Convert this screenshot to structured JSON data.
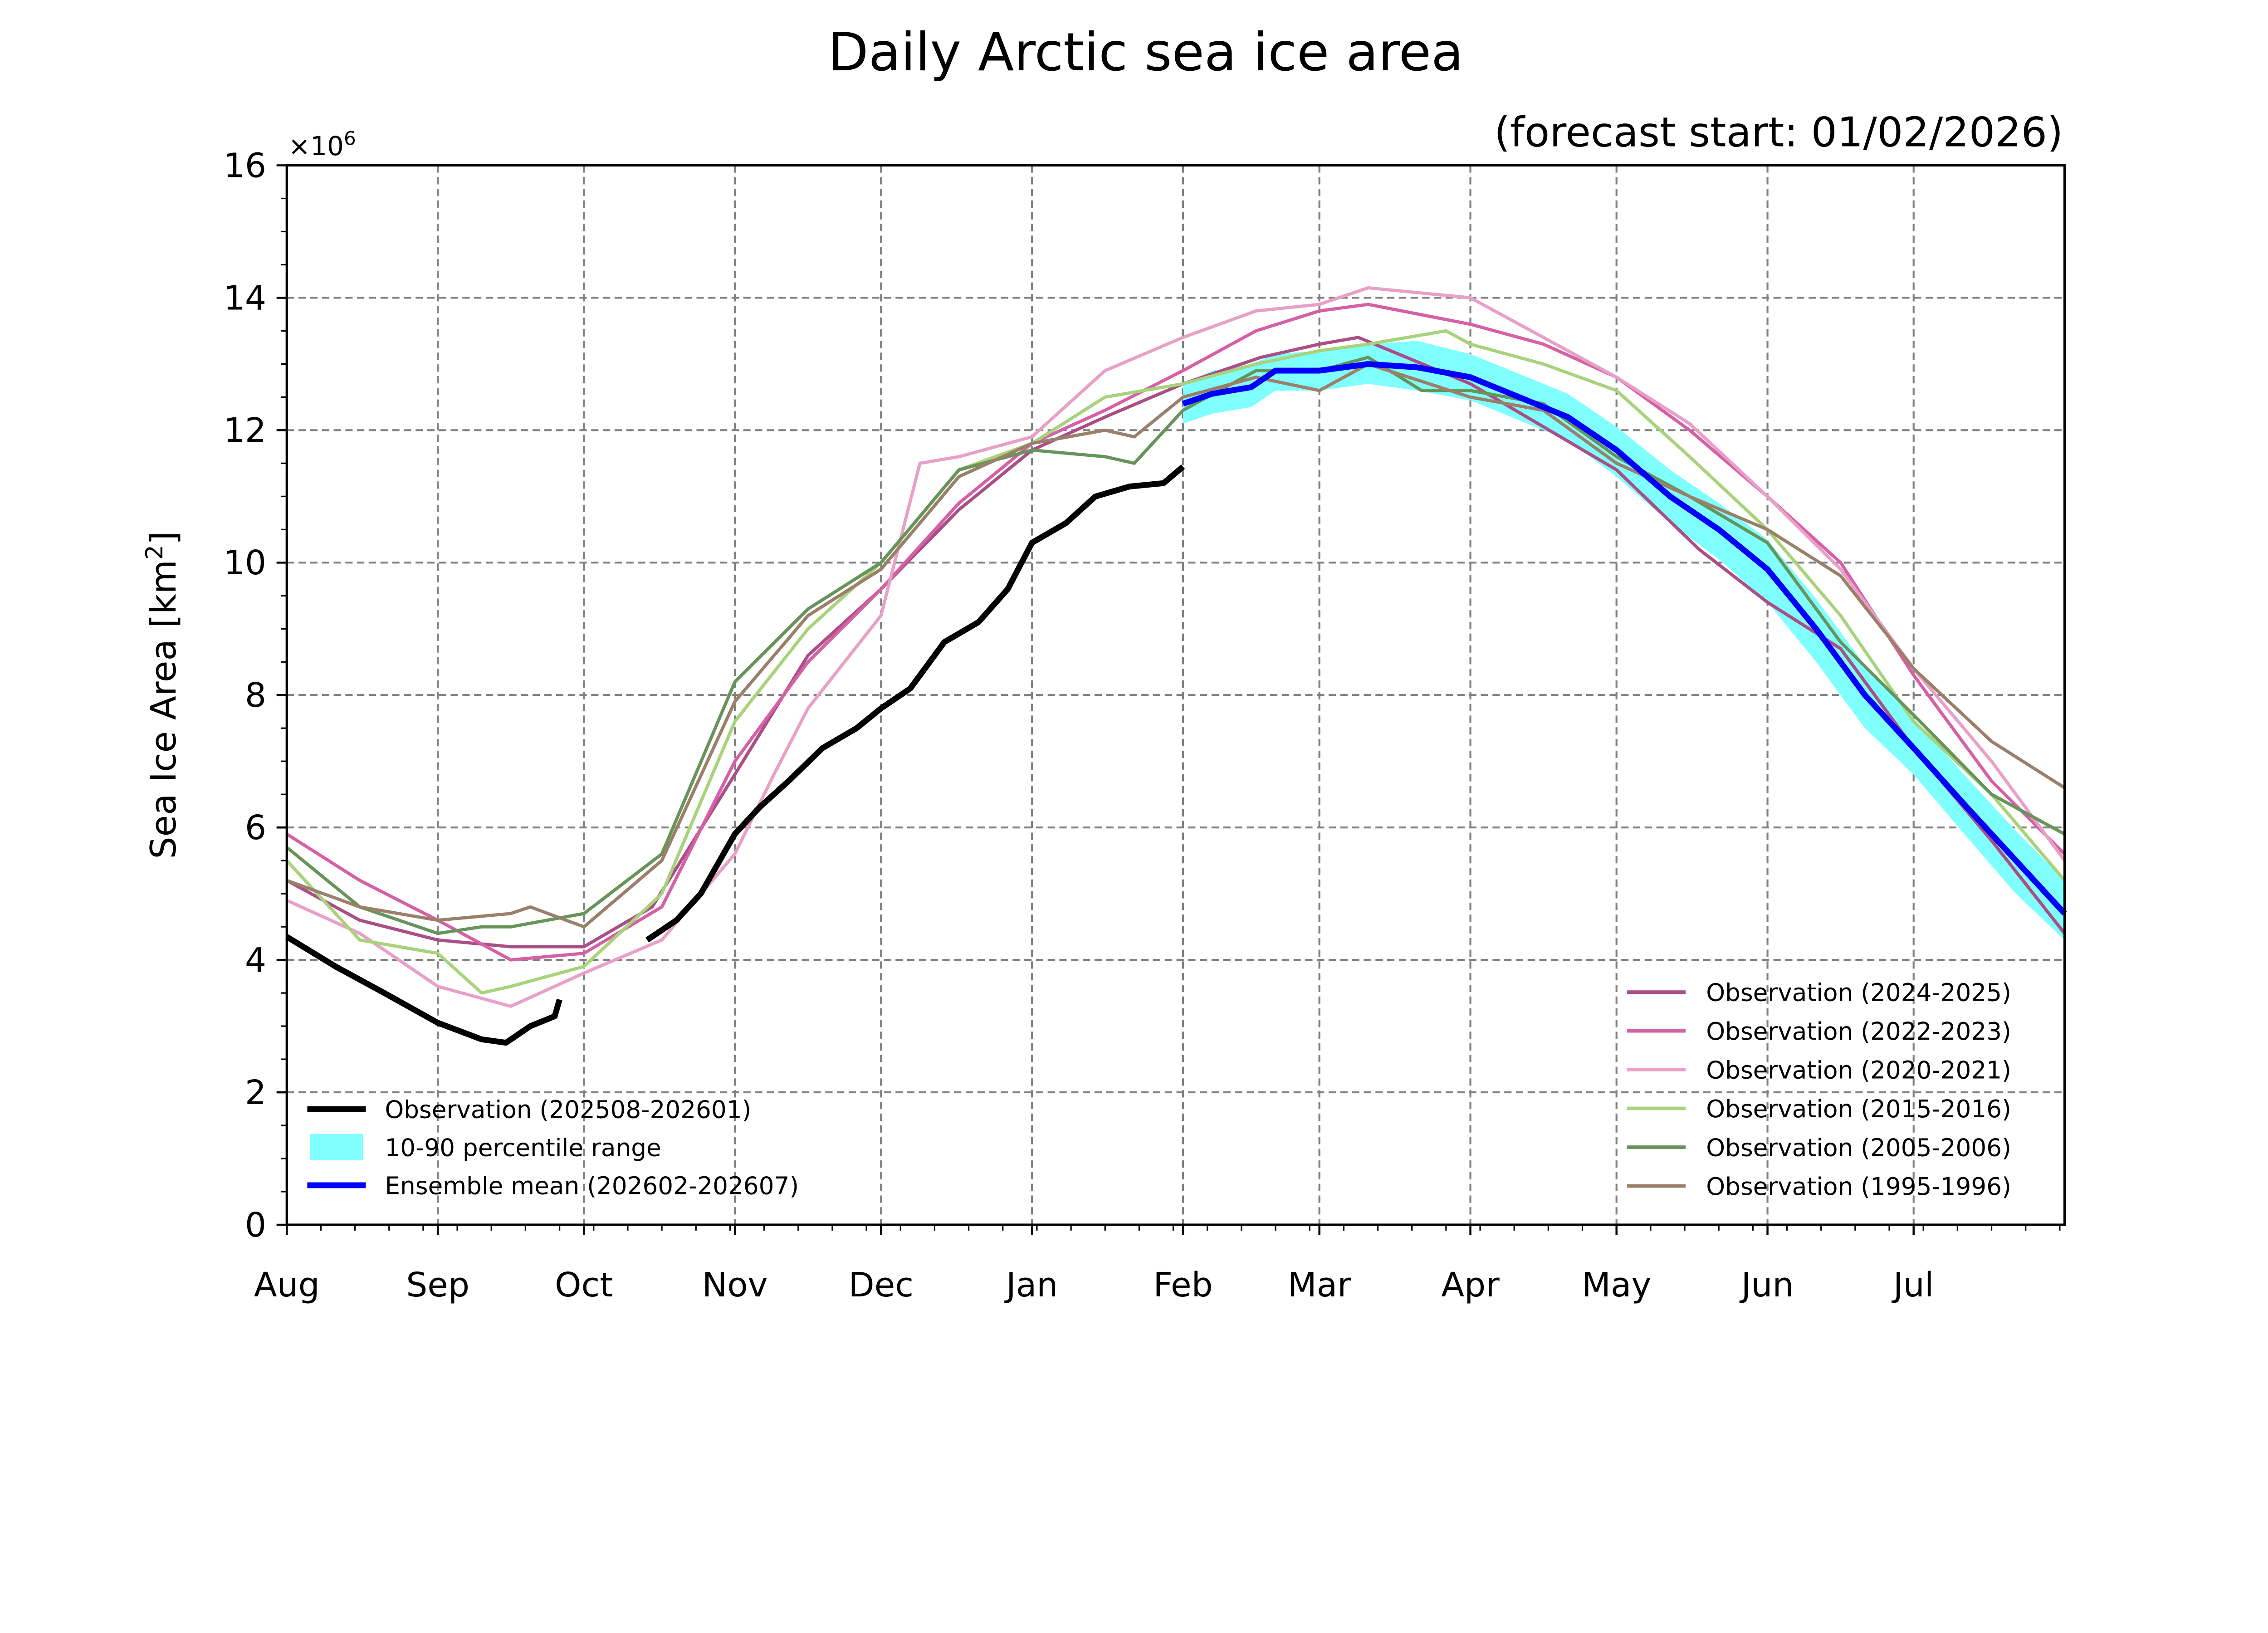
{
  "chart_data": {
    "type": "line",
    "title": "Daily Arctic sea ice area",
    "subtitle": "(forecast start: 01/02/2026)",
    "ylabel": "Sea Ice Area [km",
    "ylabel_sup": "2",
    "ylabel_end": "]",
    "y_multiplier": "×10",
    "y_multiplier_sup": "6",
    "ylim": [
      0,
      16
    ],
    "yticks": [
      "0",
      "2",
      "4",
      "6",
      "8",
      "10",
      "12",
      "14",
      "16"
    ],
    "xlim": [
      "2025-08-01",
      "2026-08-01"
    ],
    "xticks": [
      {
        "date": "2025-08-01",
        "label": "Aug"
      },
      {
        "date": "2025-09-01",
        "label": "Sep"
      },
      {
        "date": "2025-10-01",
        "label": "Oct"
      },
      {
        "date": "2025-11-01",
        "label": "Nov"
      },
      {
        "date": "2025-12-01",
        "label": "Dec"
      },
      {
        "date": "2026-01-01",
        "label": "Jan"
      },
      {
        "date": "2026-02-01",
        "label": "Feb"
      },
      {
        "date": "2026-03-01",
        "label": "Mar"
      },
      {
        "date": "2026-04-01",
        "label": "Apr"
      },
      {
        "date": "2026-05-01",
        "label": "May"
      },
      {
        "date": "2026-06-01",
        "label": "Jun"
      },
      {
        "date": "2026-07-01",
        "label": "Jul"
      }
    ],
    "grid": true,
    "legend_left_placement": "lower-left",
    "legend_right_placement": "lower-right",
    "band": {
      "name": "10-90 percentile range",
      "color": "#80ffff",
      "points": [
        [
          "2026-02-01",
          12.1,
          12.7
        ],
        [
          "2026-02-07",
          12.25,
          12.9
        ],
        [
          "2026-02-15",
          12.35,
          13.0
        ],
        [
          "2026-02-20",
          12.6,
          13.15
        ],
        [
          "2026-03-01",
          12.6,
          13.2
        ],
        [
          "2026-03-11",
          12.7,
          13.3
        ],
        [
          "2026-03-21",
          12.6,
          13.35
        ],
        [
          "2026-04-01",
          12.45,
          13.15
        ],
        [
          "2026-04-11",
          12.15,
          12.85
        ],
        [
          "2026-04-21",
          11.85,
          12.55
        ],
        [
          "2026-05-01",
          11.3,
          12.05
        ],
        [
          "2026-05-12",
          10.6,
          11.4
        ],
        [
          "2026-05-22",
          10.05,
          10.9
        ],
        [
          "2026-06-01",
          9.4,
          10.35
        ],
        [
          "2026-06-11",
          8.5,
          9.45
        ],
        [
          "2026-06-21",
          7.5,
          8.45
        ],
        [
          "2026-07-01",
          6.8,
          7.65
        ],
        [
          "2026-07-12",
          5.85,
          6.75
        ],
        [
          "2026-07-22",
          5.0,
          5.95
        ],
        [
          "2026-08-01",
          4.3,
          5.2
        ]
      ]
    },
    "series": [
      {
        "name": "Observation (2024-2025)",
        "color": "#a94f86",
        "width": 2.2,
        "points": [
          [
            "2025-08-01",
            5.2
          ],
          [
            "2025-08-16",
            4.6
          ],
          [
            "2025-09-01",
            4.3
          ],
          [
            "2025-09-16",
            4.2
          ],
          [
            "2025-10-01",
            4.2
          ],
          [
            "2025-10-15",
            4.8
          ],
          [
            "2025-11-01",
            6.8
          ],
          [
            "2025-11-16",
            8.6
          ],
          [
            "2025-12-01",
            9.6
          ],
          [
            "2025-12-17",
            10.8
          ],
          [
            "2026-01-01",
            11.7
          ],
          [
            "2026-01-16",
            12.2
          ],
          [
            "2026-02-01",
            12.7
          ],
          [
            "2026-02-17",
            13.1
          ],
          [
            "2026-03-01",
            13.3
          ],
          [
            "2026-03-09",
            13.4
          ],
          [
            "2026-04-01",
            12.7
          ],
          [
            "2026-05-01",
            11.4
          ],
          [
            "2026-05-18",
            10.2
          ],
          [
            "2026-06-01",
            9.4
          ],
          [
            "2026-06-16",
            8.7
          ],
          [
            "2026-07-01",
            7.2
          ],
          [
            "2026-07-17",
            5.8
          ],
          [
            "2026-08-01",
            4.4
          ]
        ]
      },
      {
        "name": "Observation (2022-2023)",
        "color": "#d660a6",
        "width": 2.2,
        "points": [
          [
            "2025-08-01",
            5.9
          ],
          [
            "2025-08-16",
            5.2
          ],
          [
            "2025-09-01",
            4.6
          ],
          [
            "2025-09-16",
            4.0
          ],
          [
            "2025-10-01",
            4.1
          ],
          [
            "2025-10-17",
            4.8
          ],
          [
            "2025-11-01",
            7.0
          ],
          [
            "2025-11-16",
            8.5
          ],
          [
            "2025-12-01",
            9.6
          ],
          [
            "2025-12-17",
            10.9
          ],
          [
            "2026-01-01",
            11.8
          ],
          [
            "2026-01-16",
            12.3
          ],
          [
            "2026-02-01",
            12.9
          ],
          [
            "2026-02-16",
            13.5
          ],
          [
            "2026-03-01",
            13.8
          ],
          [
            "2026-03-11",
            13.9
          ],
          [
            "2026-04-01",
            13.6
          ],
          [
            "2026-04-16",
            13.3
          ],
          [
            "2026-05-01",
            12.8
          ],
          [
            "2026-05-16",
            12.0
          ],
          [
            "2026-06-01",
            11.0
          ],
          [
            "2026-06-16",
            10.0
          ],
          [
            "2026-07-01",
            8.3
          ],
          [
            "2026-07-17",
            6.7
          ],
          [
            "2026-08-01",
            5.6
          ]
        ]
      },
      {
        "name": "Observation (2020-2021)",
        "color": "#e8a0c8",
        "width": 2.2,
        "points": [
          [
            "2025-08-01",
            4.9
          ],
          [
            "2025-08-16",
            4.4
          ],
          [
            "2025-09-01",
            3.6
          ],
          [
            "2025-09-16",
            3.3
          ],
          [
            "2025-10-01",
            3.8
          ],
          [
            "2025-10-17",
            4.3
          ],
          [
            "2025-11-01",
            5.6
          ],
          [
            "2025-11-09",
            6.8
          ],
          [
            "2025-11-16",
            7.8
          ],
          [
            "2025-12-01",
            9.2
          ],
          [
            "2025-12-09",
            11.5
          ],
          [
            "2025-12-17",
            11.6
          ],
          [
            "2026-01-01",
            11.9
          ],
          [
            "2026-01-16",
            12.9
          ],
          [
            "2026-02-01",
            13.4
          ],
          [
            "2026-02-16",
            13.8
          ],
          [
            "2026-03-01",
            13.9
          ],
          [
            "2026-03-11",
            14.15
          ],
          [
            "2026-04-01",
            14.0
          ],
          [
            "2026-04-16",
            13.4
          ],
          [
            "2026-05-01",
            12.8
          ],
          [
            "2026-05-16",
            12.1
          ],
          [
            "2026-06-01",
            11.0
          ],
          [
            "2026-06-16",
            9.9
          ],
          [
            "2026-07-01",
            8.4
          ],
          [
            "2026-07-17",
            7.0
          ],
          [
            "2026-08-01",
            5.5
          ]
        ]
      },
      {
        "name": "Observation (2015-2016)",
        "color": "#a8d27c",
        "width": 2.2,
        "points": [
          [
            "2025-08-01",
            5.5
          ],
          [
            "2025-08-16",
            4.3
          ],
          [
            "2025-09-01",
            4.1
          ],
          [
            "2025-09-10",
            3.5
          ],
          [
            "2025-09-16",
            3.6
          ],
          [
            "2025-10-01",
            3.9
          ],
          [
            "2025-10-17",
            5.0
          ],
          [
            "2025-11-01",
            7.6
          ],
          [
            "2025-11-16",
            9.0
          ],
          [
            "2025-12-01",
            10.0
          ],
          [
            "2025-12-17",
            11.4
          ],
          [
            "2026-01-01",
            11.8
          ],
          [
            "2026-01-16",
            12.5
          ],
          [
            "2026-02-01",
            12.7
          ],
          [
            "2026-02-16",
            13.0
          ],
          [
            "2026-03-01",
            13.2
          ],
          [
            "2026-03-11",
            13.3
          ],
          [
            "2026-03-27",
            13.5
          ],
          [
            "2026-04-01",
            13.3
          ],
          [
            "2026-04-16",
            13.0
          ],
          [
            "2026-05-01",
            12.6
          ],
          [
            "2026-05-16",
            11.6
          ],
          [
            "2026-06-01",
            10.5
          ],
          [
            "2026-06-16",
            9.2
          ],
          [
            "2026-07-01",
            7.6
          ],
          [
            "2026-07-17",
            6.5
          ],
          [
            "2026-08-01",
            5.2
          ]
        ]
      },
      {
        "name": "Observation (2005-2006)",
        "color": "#66945a",
        "width": 2.2,
        "points": [
          [
            "2025-08-01",
            5.7
          ],
          [
            "2025-08-16",
            4.8
          ],
          [
            "2025-09-01",
            4.4
          ],
          [
            "2025-09-10",
            4.5
          ],
          [
            "2025-09-16",
            4.5
          ],
          [
            "2025-10-01",
            4.7
          ],
          [
            "2025-10-17",
            5.6
          ],
          [
            "2025-11-01",
            8.2
          ],
          [
            "2025-11-16",
            9.3
          ],
          [
            "2025-12-01",
            10.0
          ],
          [
            "2025-12-17",
            11.4
          ],
          [
            "2026-01-01",
            11.7
          ],
          [
            "2026-01-16",
            11.6
          ],
          [
            "2026-01-22",
            11.5
          ],
          [
            "2026-02-01",
            12.3
          ],
          [
            "2026-02-16",
            12.9
          ],
          [
            "2026-03-01",
            12.9
          ],
          [
            "2026-03-11",
            13.1
          ],
          [
            "2026-03-22",
            12.6
          ],
          [
            "2026-04-01",
            12.6
          ],
          [
            "2026-04-16",
            12.4
          ],
          [
            "2026-05-01",
            11.6
          ],
          [
            "2026-05-16",
            11.0
          ],
          [
            "2026-06-01",
            10.3
          ],
          [
            "2026-06-16",
            8.8
          ],
          [
            "2026-07-01",
            7.7
          ],
          [
            "2026-07-17",
            6.5
          ],
          [
            "2026-08-01",
            5.9
          ]
        ]
      },
      {
        "name": "Observation (1995-1996)",
        "color": "#9a806a",
        "width": 2.2,
        "points": [
          [
            "2025-08-01",
            5.2
          ],
          [
            "2025-08-16",
            4.8
          ],
          [
            "2025-09-01",
            4.6
          ],
          [
            "2025-09-16",
            4.7
          ],
          [
            "2025-09-20",
            4.8
          ],
          [
            "2025-10-01",
            4.5
          ],
          [
            "2025-10-17",
            5.5
          ],
          [
            "2025-11-01",
            7.9
          ],
          [
            "2025-11-16",
            9.2
          ],
          [
            "2025-12-01",
            9.9
          ],
          [
            "2025-12-17",
            11.3
          ],
          [
            "2026-01-01",
            11.8
          ],
          [
            "2026-01-16",
            12.0
          ],
          [
            "2026-01-22",
            11.9
          ],
          [
            "2026-02-01",
            12.5
          ],
          [
            "2026-02-16",
            12.8
          ],
          [
            "2026-03-01",
            12.6
          ],
          [
            "2026-03-11",
            13.0
          ],
          [
            "2026-04-01",
            12.5
          ],
          [
            "2026-04-16",
            12.3
          ],
          [
            "2026-05-01",
            11.5
          ],
          [
            "2026-05-16",
            11.0
          ],
          [
            "2026-06-01",
            10.5
          ],
          [
            "2026-06-16",
            9.8
          ],
          [
            "2026-07-01",
            8.4
          ],
          [
            "2026-07-17",
            7.3
          ],
          [
            "2026-08-01",
            6.6
          ]
        ]
      },
      {
        "name": "Observation (202508-202601)",
        "color": "#000000",
        "width": 4,
        "segments": [
          [
            [
              "2025-08-01",
              4.35
            ],
            [
              "2025-08-11",
              3.9
            ],
            [
              "2025-08-21",
              3.5
            ],
            [
              "2025-09-01",
              3.05
            ],
            [
              "2025-09-10",
              2.8
            ],
            [
              "2025-09-15",
              2.75
            ],
            [
              "2025-09-20",
              3.0
            ],
            [
              "2025-09-25",
              3.15
            ],
            [
              "2025-09-26",
              3.4
            ]
          ],
          [
            [
              "2025-10-14",
              4.3
            ],
            [
              "2025-10-20",
              4.6
            ],
            [
              "2025-10-25",
              5.0
            ],
            [
              "2025-11-01",
              5.9
            ],
            [
              "2025-11-06",
              6.3
            ],
            [
              "2025-11-12",
              6.7
            ],
            [
              "2025-11-19",
              7.2
            ],
            [
              "2025-11-26",
              7.5
            ],
            [
              "2025-12-01",
              7.8
            ],
            [
              "2025-12-07",
              8.1
            ],
            [
              "2025-12-14",
              8.8
            ],
            [
              "2025-12-21",
              9.1
            ],
            [
              "2025-12-27",
              9.6
            ],
            [
              "2026-01-01",
              10.3
            ],
            [
              "2026-01-08",
              10.6
            ],
            [
              "2026-01-14",
              11.0
            ],
            [
              "2026-01-21",
              11.15
            ],
            [
              "2026-01-28",
              11.2
            ],
            [
              "2026-02-01",
              11.45
            ]
          ]
        ]
      },
      {
        "name": "Ensemble mean (202602-202607)",
        "color": "#0000ff",
        "width": 4,
        "points": [
          [
            "2026-02-01",
            12.4
          ],
          [
            "2026-02-07",
            12.55
          ],
          [
            "2026-02-15",
            12.65
          ],
          [
            "2026-02-20",
            12.9
          ],
          [
            "2026-03-01",
            12.9
          ],
          [
            "2026-03-11",
            13.0
          ],
          [
            "2026-03-21",
            12.95
          ],
          [
            "2026-04-01",
            12.8
          ],
          [
            "2026-04-11",
            12.5
          ],
          [
            "2026-04-21",
            12.2
          ],
          [
            "2026-05-01",
            11.7
          ],
          [
            "2026-05-12",
            11.0
          ],
          [
            "2026-05-22",
            10.5
          ],
          [
            "2026-06-01",
            9.9
          ],
          [
            "2026-06-11",
            9.0
          ],
          [
            "2026-06-21",
            8.0
          ],
          [
            "2026-07-01",
            7.2
          ],
          [
            "2026-07-12",
            6.3
          ],
          [
            "2026-07-22",
            5.5
          ],
          [
            "2026-08-01",
            4.7
          ]
        ]
      }
    ],
    "legend_left": [
      {
        "label": "Observation (202508-202601)",
        "color": "#000000",
        "kind": "line"
      },
      {
        "label": "10-90 percentile range",
        "color": "#80ffff",
        "kind": "patch"
      },
      {
        "label": "Ensemble mean (202602-202607)",
        "color": "#0000ff",
        "kind": "line"
      }
    ],
    "legend_right": [
      {
        "label": "Observation (2024-2025)",
        "color": "#a94f86"
      },
      {
        "label": "Observation (2022-2023)",
        "color": "#d660a6"
      },
      {
        "label": "Observation (2020-2021)",
        "color": "#e8a0c8"
      },
      {
        "label": "Observation (2015-2016)",
        "color": "#a8d27c"
      },
      {
        "label": "Observation (2005-2006)",
        "color": "#66945a"
      },
      {
        "label": "Observation (1995-1996)",
        "color": "#9a806a"
      }
    ]
  }
}
